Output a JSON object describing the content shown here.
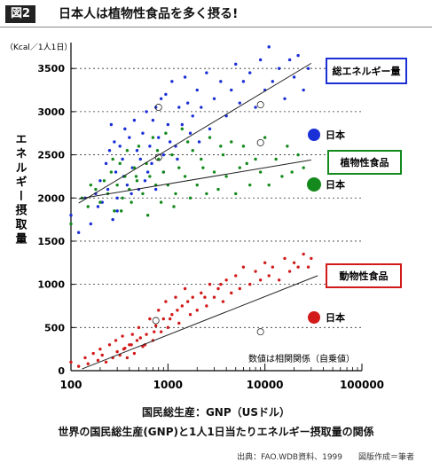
{
  "header": {
    "badge": "図2",
    "title": "日本人は植物性食品を多く摂る!"
  },
  "chart_data": {
    "type": "scatter",
    "title": "世界の国民総生産(GNP)と1人1日当たりエネルギー摂取量の関係",
    "xlabel": "国民総生産：GNP（USドル）",
    "ylabel": "エネルギー摂取量",
    "yunit": "（Kcal／1人1日）",
    "xscale": "log",
    "xlim": [
      100,
      100000
    ],
    "ylim": [
      0,
      3800
    ],
    "xticks": [
      "100",
      "1000",
      "10000",
      "100000"
    ],
    "yticks": [
      "0",
      "500",
      "1000",
      "1500",
      "2000",
      "2500",
      "3000",
      "3500"
    ],
    "grid": "horizontal-dotted",
    "series": [
      {
        "name": "総エネルギー量",
        "color": "#1a2fd6",
        "japan_label": "日本",
        "japan_value": 2780,
        "trend": [
          [
            120,
            1940
          ],
          [
            30000,
            3560
          ]
        ],
        "points": [
          [
            100,
            1800
          ],
          [
            120,
            1600
          ],
          [
            140,
            2000
          ],
          [
            160,
            1700
          ],
          [
            180,
            2050
          ],
          [
            200,
            2200
          ],
          [
            210,
            1950
          ],
          [
            230,
            2400
          ],
          [
            240,
            2100
          ],
          [
            250,
            2550
          ],
          [
            260,
            2850
          ],
          [
            280,
            2650
          ],
          [
            290,
            2300
          ],
          [
            300,
            2000
          ],
          [
            320,
            2600
          ],
          [
            340,
            2450
          ],
          [
            360,
            2800
          ],
          [
            380,
            2150
          ],
          [
            400,
            2700
          ],
          [
            430,
            2350
          ],
          [
            450,
            2900
          ],
          [
            480,
            2550
          ],
          [
            500,
            2100
          ],
          [
            520,
            2450
          ],
          [
            550,
            2750
          ],
          [
            600,
            3000
          ],
          [
            620,
            2300
          ],
          [
            650,
            2600
          ],
          [
            700,
            2900
          ],
          [
            750,
            3050
          ],
          [
            800,
            2700
          ],
          [
            850,
            3150
          ],
          [
            900,
            2500
          ],
          [
            950,
            3200
          ],
          [
            1000,
            2850
          ],
          [
            1100,
            3350
          ],
          [
            1200,
            2600
          ],
          [
            1300,
            3050
          ],
          [
            1400,
            2850
          ],
          [
            1500,
            3400
          ],
          [
            1600,
            3100
          ],
          [
            1800,
            2950
          ],
          [
            2000,
            3250
          ],
          [
            2200,
            3050
          ],
          [
            2500,
            3450
          ],
          [
            2700,
            2800
          ],
          [
            3000,
            3150
          ],
          [
            3500,
            3350
          ],
          [
            4000,
            2950
          ],
          [
            4500,
            3250
          ],
          [
            5000,
            3550
          ],
          [
            5500,
            3100
          ],
          [
            6000,
            3350
          ],
          [
            7000,
            3450
          ],
          [
            8000,
            3050
          ],
          [
            9000,
            3600
          ],
          [
            10000,
            3250
          ],
          [
            11000,
            3750
          ],
          [
            12000,
            3350
          ],
          [
            14000,
            3500
          ],
          [
            16000,
            3150
          ],
          [
            18000,
            3600
          ],
          [
            20000,
            3400
          ],
          [
            22000,
            3650
          ],
          [
            25000,
            3250
          ],
          [
            28000,
            3500
          ],
          [
            300,
            1850
          ],
          [
            270,
            1750
          ],
          [
            190,
            1900
          ],
          [
            350,
            2250
          ],
          [
            420,
            2050
          ],
          [
            580,
            2200
          ],
          [
            680,
            2400
          ],
          [
            750,
            2100
          ],
          [
            900,
            2300
          ],
          [
            1050,
            2650
          ],
          [
            1250,
            2450
          ],
          [
            1700,
            2750
          ],
          [
            2100,
            2650
          ]
        ]
      },
      {
        "name": "植物性食品",
        "color": "#138a1b",
        "japan_label": "日本",
        "japan_value": 2180,
        "trend": [
          [
            120,
            1990
          ],
          [
            30000,
            2440
          ]
        ],
        "points": [
          [
            100,
            1700
          ],
          [
            130,
            2000
          ],
          [
            150,
            1900
          ],
          [
            180,
            2100
          ],
          [
            200,
            1950
          ],
          [
            220,
            2200
          ],
          [
            240,
            2050
          ],
          [
            260,
            2300
          ],
          [
            280,
            1850
          ],
          [
            300,
            2150
          ],
          [
            320,
            2400
          ],
          [
            340,
            2000
          ],
          [
            360,
            2250
          ],
          [
            380,
            2550
          ],
          [
            400,
            2100
          ],
          [
            420,
            1950
          ],
          [
            450,
            2350
          ],
          [
            480,
            2200
          ],
          [
            500,
            2600
          ],
          [
            550,
            2050
          ],
          [
            600,
            2400
          ],
          [
            650,
            2250
          ],
          [
            700,
            2700
          ],
          [
            750,
            2150
          ],
          [
            800,
            2450
          ],
          [
            850,
            1950
          ],
          [
            900,
            2300
          ],
          [
            950,
            2750
          ],
          [
            1000,
            2150
          ],
          [
            1100,
            2500
          ],
          [
            1200,
            2050
          ],
          [
            1300,
            2350
          ],
          [
            1400,
            2800
          ],
          [
            1500,
            2250
          ],
          [
            1700,
            2000
          ],
          [
            1800,
            2550
          ],
          [
            2000,
            2150
          ],
          [
            2200,
            2450
          ],
          [
            2500,
            2050
          ],
          [
            2700,
            2700
          ],
          [
            3000,
            2300
          ],
          [
            3300,
            2100
          ],
          [
            3700,
            2500
          ],
          [
            4000,
            2250
          ],
          [
            4500,
            2650
          ],
          [
            5000,
            2050
          ],
          [
            5500,
            2350
          ],
          [
            6000,
            2600
          ],
          [
            7000,
            2150
          ],
          [
            8000,
            2450
          ],
          [
            9000,
            2300
          ],
          [
            10000,
            2700
          ],
          [
            11000,
            2150
          ],
          [
            13000,
            2450
          ],
          [
            15000,
            2250
          ],
          [
            17000,
            2600
          ],
          [
            19000,
            2300
          ],
          [
            22000,
            2500
          ],
          [
            25000,
            2350
          ],
          [
            160,
            2150
          ],
          [
            270,
            2450
          ],
          [
            330,
            1850
          ],
          [
            470,
            2250
          ],
          [
            620,
            1800
          ],
          [
            780,
            2550
          ],
          [
            1150,
            1900
          ],
          [
            1600,
            2650
          ],
          [
            2300,
            2350
          ],
          [
            3500,
            2600
          ],
          [
            6500,
            2400
          ]
        ]
      },
      {
        "name": "動物性食品",
        "color": "#d21a1a",
        "japan_label": "日本",
        "japan_value": 600,
        "trend": [
          [
            130,
            20
          ],
          [
            35000,
            1100
          ]
        ],
        "points": [
          [
            100,
            100
          ],
          [
            120,
            50
          ],
          [
            140,
            150
          ],
          [
            150,
            80
          ],
          [
            170,
            200
          ],
          [
            190,
            120
          ],
          [
            200,
            250
          ],
          [
            210,
            180
          ],
          [
            230,
            100
          ],
          [
            250,
            300
          ],
          [
            270,
            150
          ],
          [
            290,
            350
          ],
          [
            300,
            220
          ],
          [
            320,
            180
          ],
          [
            340,
            400
          ],
          [
            360,
            260
          ],
          [
            380,
            150
          ],
          [
            400,
            300
          ],
          [
            430,
            420
          ],
          [
            450,
            200
          ],
          [
            480,
            350
          ],
          [
            500,
            500
          ],
          [
            550,
            280
          ],
          [
            600,
            420
          ],
          [
            650,
            600
          ],
          [
            700,
            350
          ],
          [
            750,
            520
          ],
          [
            800,
            700
          ],
          [
            850,
            450
          ],
          [
            900,
            600
          ],
          [
            950,
            800
          ],
          [
            1000,
            500
          ],
          [
            1100,
            650
          ],
          [
            1200,
            850
          ],
          [
            1300,
            550
          ],
          [
            1400,
            750
          ],
          [
            1500,
            950
          ],
          [
            1700,
            650
          ],
          [
            1800,
            850
          ],
          [
            2000,
            700
          ],
          [
            2200,
            900
          ],
          [
            2500,
            750
          ],
          [
            2700,
            1000
          ],
          [
            3000,
            850
          ],
          [
            3300,
            950
          ],
          [
            3700,
            800
          ],
          [
            4000,
            1050
          ],
          [
            4500,
            900
          ],
          [
            5000,
            1100
          ],
          [
            5500,
            950
          ],
          [
            6000,
            1200
          ],
          [
            7000,
            1000
          ],
          [
            8000,
            1150
          ],
          [
            9000,
            1050
          ],
          [
            10000,
            1250
          ],
          [
            11000,
            1100
          ],
          [
            12000,
            1200
          ],
          [
            14000,
            1050
          ],
          [
            16000,
            1300
          ],
          [
            18000,
            1150
          ],
          [
            20000,
            1250
          ],
          [
            22000,
            1200
          ],
          [
            25000,
            1350
          ],
          [
            28000,
            1200
          ],
          [
            30000,
            1300
          ],
          [
            350,
            250
          ],
          [
            420,
            300
          ],
          [
            520,
            380
          ],
          [
            580,
            300
          ],
          [
            720,
            450
          ],
          [
            1050,
            600
          ],
          [
            1250,
            700
          ],
          [
            1600,
            800
          ],
          [
            2400,
            850
          ],
          [
            3500,
            1000
          ]
        ]
      }
    ],
    "annotation": "数値は相関関係（自乗値）",
    "circled_points": [
      [
        800,
        3050
      ],
      [
        800,
        2470
      ],
      [
        9000,
        3080
      ],
      [
        9000,
        2640
      ],
      [
        750,
        580
      ],
      [
        9000,
        450
      ]
    ]
  },
  "footer": {
    "source": "出典：FAO.WDB資料、1999　　図版作成＝筆者"
  }
}
